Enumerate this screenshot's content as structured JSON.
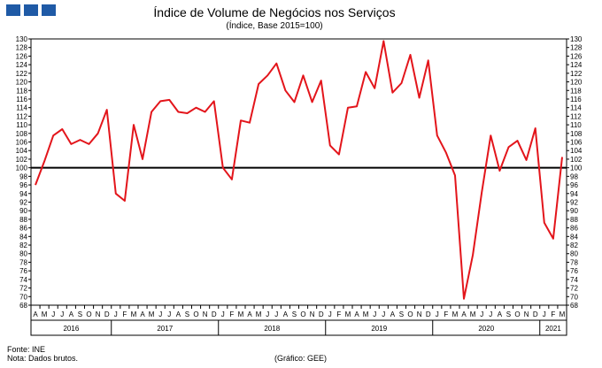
{
  "header": {
    "title": "Índice de Volume de Negócios nos Serviços",
    "subtitle": "(Índice, Base 2015=100)"
  },
  "footer": {
    "source": "Fonte: INE",
    "note": "Nota: Dados brutos.",
    "credit": "(Gráfico: GEE)"
  },
  "colors": {
    "series": "#e3151b",
    "baseline": "#000000",
    "logo": "#1f5aa6"
  },
  "chart_data": {
    "type": "line",
    "title": "Índice de Volume de Negócios nos Serviços",
    "subtitle": "(Índice, Base 2015=100)",
    "ylim": [
      68,
      130
    ],
    "ytick_step": 2,
    "reference_line": 100,
    "grid": false,
    "y_axis_both_sides": true,
    "month_labels": [
      "A",
      "M",
      "J",
      "J",
      "A",
      "S",
      "O",
      "N",
      "D",
      "J",
      "F",
      "M",
      "A",
      "M",
      "J",
      "J",
      "A",
      "S",
      "O",
      "N",
      "D",
      "J",
      "F",
      "M",
      "A",
      "M",
      "J",
      "J",
      "A",
      "S",
      "O",
      "N",
      "D",
      "J",
      "F",
      "M",
      "A",
      "M",
      "J",
      "J",
      "A",
      "S",
      "O",
      "N",
      "D",
      "J",
      "F",
      "M",
      "A",
      "M",
      "J",
      "J",
      "A",
      "S",
      "O",
      "N",
      "D",
      "J",
      "F",
      "M"
    ],
    "years": [
      {
        "label": "2016",
        "start": 0,
        "count": 9
      },
      {
        "label": "2017",
        "start": 9,
        "count": 12
      },
      {
        "label": "2018",
        "start": 21,
        "count": 12
      },
      {
        "label": "2019",
        "start": 33,
        "count": 12
      },
      {
        "label": "2020",
        "start": 45,
        "count": 12
      },
      {
        "label": "2021",
        "start": 57,
        "count": 3
      }
    ],
    "series": [
      {
        "values": [
          96,
          101.5,
          107.5,
          109,
          105.5,
          106.5,
          105.5,
          108,
          113.5,
          94,
          92.3,
          110,
          102,
          113,
          115.5,
          115.8,
          113,
          112.7,
          114,
          113,
          115.5,
          100,
          97.3,
          111,
          110.5,
          119.5,
          121.5,
          124.3,
          118,
          115.3,
          121.5,
          115.3,
          120.3,
          105.2,
          103.1,
          114,
          114.3,
          122.3,
          118.5,
          129.5,
          117.5,
          119.7,
          126.3,
          116.3,
          125,
          107.5,
          103.5,
          98.2,
          69.5,
          79.7,
          94.3,
          107.5,
          99.3,
          104.8,
          106.3,
          101.8,
          109.2,
          87.2,
          83.5,
          102.5
        ]
      }
    ]
  }
}
